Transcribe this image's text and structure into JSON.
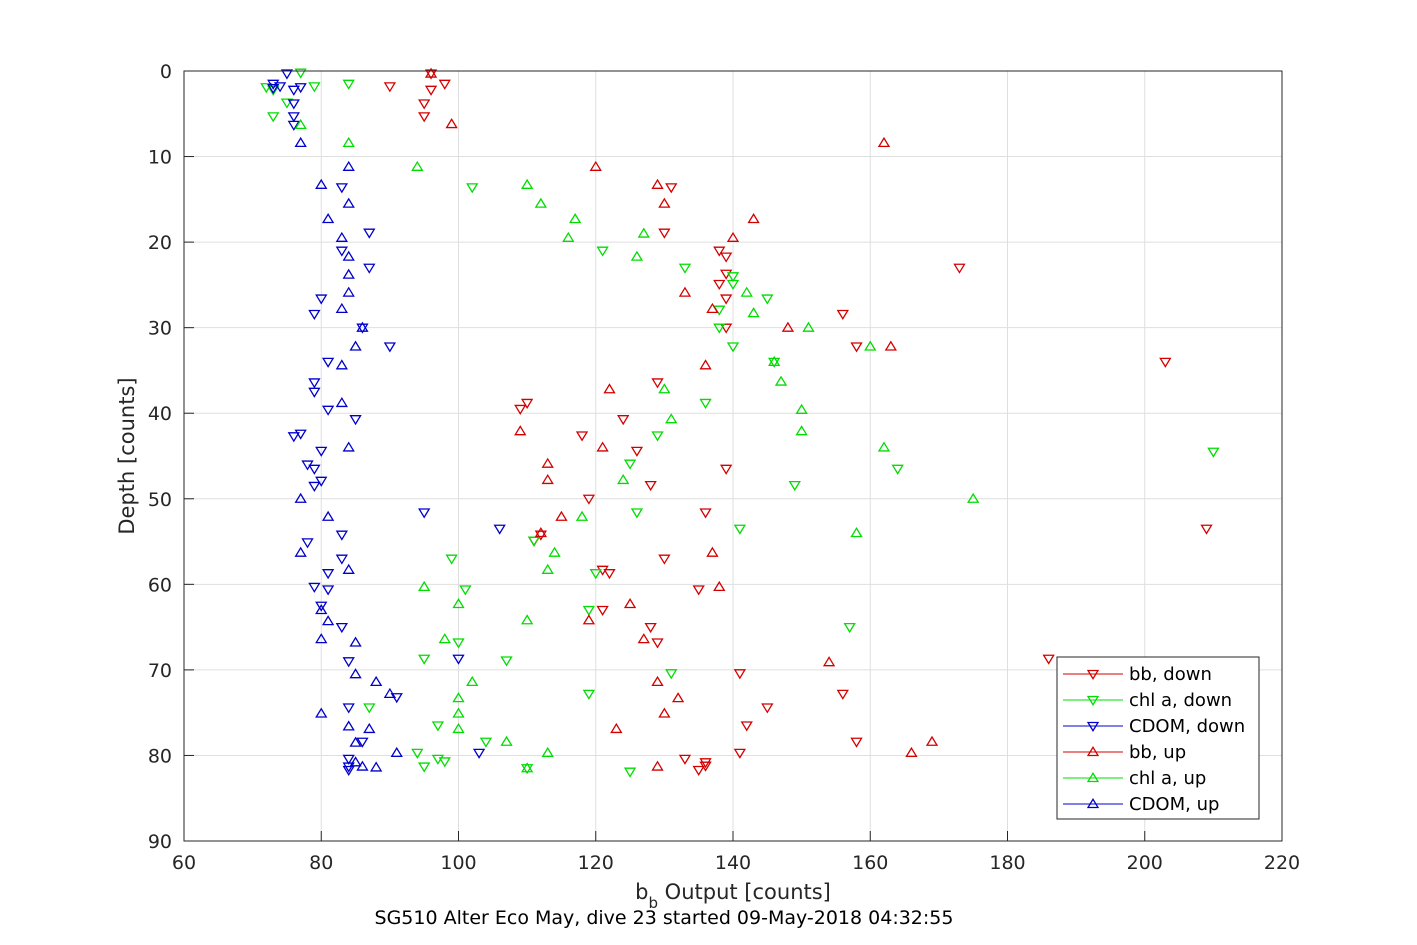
{
  "chart_data": {
    "type": "scatter",
    "title": "",
    "caption": "SG510 Alter Eco May, dive 23 started 09-May-2018 04:32:55",
    "xlabel_main": "b",
    "xlabel_sub": "b",
    "xlabel_rest": " Output [counts]",
    "ylabel": "Depth [counts]",
    "xlim": [
      60,
      220
    ],
    "ylim": [
      0,
      90
    ],
    "y_reversed": true,
    "grid": true,
    "xticks": [
      60,
      80,
      100,
      120,
      140,
      160,
      180,
      200,
      220
    ],
    "yticks": [
      0,
      10,
      20,
      30,
      40,
      50,
      60,
      70,
      80,
      90
    ],
    "legend_position": "bottom-right",
    "series": [
      {
        "name": "bb, down",
        "color": "#d40000",
        "marker": "triangle-down",
        "points": [
          [
            96,
            0.3
          ],
          [
            98,
            1.5
          ],
          [
            90,
            1.8
          ],
          [
            96,
            2.2
          ],
          [
            95,
            3.8
          ],
          [
            95,
            5.3
          ],
          [
            131,
            13.6
          ],
          [
            130,
            18.9
          ],
          [
            138,
            21
          ],
          [
            139,
            21.7
          ],
          [
            139,
            23.7
          ],
          [
            173,
            23
          ],
          [
            138,
            24.9
          ],
          [
            139,
            26.6
          ],
          [
            156,
            28.4
          ],
          [
            139,
            30
          ],
          [
            158,
            32.2
          ],
          [
            203,
            34
          ],
          [
            129,
            36.4
          ],
          [
            110,
            38.8
          ],
          [
            109,
            39.5
          ],
          [
            124,
            40.7
          ],
          [
            118,
            42.6
          ],
          [
            126,
            44.4
          ],
          [
            139,
            46.5
          ],
          [
            128,
            48.4
          ],
          [
            119,
            50
          ],
          [
            136,
            51.6
          ],
          [
            209,
            53.5
          ],
          [
            112,
            54.2
          ],
          [
            111,
            54.9
          ],
          [
            130,
            57
          ],
          [
            121,
            58.3
          ],
          [
            122,
            58.7
          ],
          [
            135,
            60.6
          ],
          [
            121,
            63
          ],
          [
            128,
            65
          ],
          [
            129,
            66.8
          ],
          [
            186,
            68.7
          ],
          [
            141,
            70.4
          ],
          [
            156,
            72.8
          ],
          [
            145,
            74.4
          ],
          [
            142,
            76.5
          ],
          [
            158,
            78.4
          ],
          [
            141,
            79.7
          ],
          [
            133,
            80.4
          ],
          [
            136,
            80.8
          ],
          [
            136,
            81.2
          ],
          [
            135,
            81.7
          ]
        ]
      },
      {
        "name": "chl a, down",
        "color": "#00dd00",
        "marker": "triangle-down",
        "points": [
          [
            77,
            0.2
          ],
          [
            84,
            1.5
          ],
          [
            79,
            1.8
          ],
          [
            72,
            1.9
          ],
          [
            73,
            2.2
          ],
          [
            75,
            3.7
          ],
          [
            73,
            5.3
          ],
          [
            102,
            13.6
          ],
          [
            121,
            21
          ],
          [
            133,
            23
          ],
          [
            140,
            24.9
          ],
          [
            145,
            26.6
          ],
          [
            138,
            27.9
          ],
          [
            138,
            30
          ],
          [
            140,
            32.2
          ],
          [
            146,
            34
          ],
          [
            136,
            38.8
          ],
          [
            149,
            48.4
          ],
          [
            111,
            54.9
          ],
          [
            129,
            42.6
          ],
          [
            125,
            45.9
          ],
          [
            126,
            51.6
          ],
          [
            141,
            53.5
          ],
          [
            99,
            57
          ],
          [
            101,
            60.6
          ],
          [
            120,
            58.7
          ],
          [
            119,
            63
          ],
          [
            100,
            66.8
          ],
          [
            95,
            68.7
          ],
          [
            107,
            68.9
          ],
          [
            87,
            74.4
          ],
          [
            97,
            76.5
          ],
          [
            104,
            78.4
          ],
          [
            94,
            79.7
          ],
          [
            97,
            80.4
          ],
          [
            98,
            80.7
          ],
          [
            95,
            81.3
          ],
          [
            110,
            81.5
          ],
          [
            125,
            81.9
          ],
          [
            119,
            72.8
          ],
          [
            140,
            24
          ],
          [
            210,
            44.5
          ],
          [
            164,
            46.5
          ],
          [
            157,
            65
          ],
          [
            131,
            70.4
          ]
        ]
      },
      {
        "name": "CDOM, down",
        "color": "#0000cc",
        "marker": "triangle-down",
        "points": [
          [
            75,
            0.3
          ],
          [
            73,
            1.5
          ],
          [
            77,
            1.9
          ],
          [
            74,
            1.8
          ],
          [
            73,
            2
          ],
          [
            76,
            2.2
          ],
          [
            76,
            3.8
          ],
          [
            76,
            5.3
          ],
          [
            76,
            6.3
          ],
          [
            83,
            13.6
          ],
          [
            87,
            18.9
          ],
          [
            83,
            21
          ],
          [
            87,
            23
          ],
          [
            80,
            26.6
          ],
          [
            79,
            28.4
          ],
          [
            86,
            30
          ],
          [
            90,
            32.2
          ],
          [
            81,
            34
          ],
          [
            79,
            36.4
          ],
          [
            79,
            37.5
          ],
          [
            81,
            39.6
          ],
          [
            85,
            40.7
          ],
          [
            77,
            42.4
          ],
          [
            76,
            42.7
          ],
          [
            80,
            44.4
          ],
          [
            78,
            46
          ],
          [
            79,
            46.5
          ],
          [
            80,
            47.9
          ],
          [
            79,
            48.5
          ],
          [
            95,
            51.6
          ],
          [
            106,
            53.5
          ],
          [
            83,
            54.2
          ],
          [
            78,
            55.1
          ],
          [
            83,
            57
          ],
          [
            81,
            58.7
          ],
          [
            79,
            60.3
          ],
          [
            81,
            60.6
          ],
          [
            80,
            62.5
          ],
          [
            83,
            65
          ],
          [
            84,
            69
          ],
          [
            100,
            68.7
          ],
          [
            91,
            73.2
          ],
          [
            84,
            74.4
          ],
          [
            86,
            78.4
          ],
          [
            103,
            79.7
          ],
          [
            84,
            80.4
          ],
          [
            84,
            81.7
          ],
          [
            84,
            81.3
          ]
        ]
      },
      {
        "name": "bb, up",
        "color": "#d40000",
        "marker": "triangle-up",
        "points": [
          [
            96,
            0.3
          ],
          [
            99,
            6.2
          ],
          [
            162,
            8.4
          ],
          [
            120,
            11.2
          ],
          [
            129,
            13.3
          ],
          [
            130,
            15.5
          ],
          [
            143,
            17.3
          ],
          [
            140,
            19.5
          ],
          [
            133,
            25.9
          ],
          [
            137,
            27.8
          ],
          [
            148,
            30
          ],
          [
            163,
            32.2
          ],
          [
            136,
            34.4
          ],
          [
            122,
            37.2
          ],
          [
            109,
            42.1
          ],
          [
            121,
            44
          ],
          [
            113,
            45.9
          ],
          [
            113,
            47.8
          ],
          [
            115,
            52.1
          ],
          [
            112,
            54
          ],
          [
            137,
            56.3
          ],
          [
            138,
            60.3
          ],
          [
            125,
            62.3
          ],
          [
            119,
            64.2
          ],
          [
            127,
            66.4
          ],
          [
            154,
            69.1
          ],
          [
            129,
            71.4
          ],
          [
            132,
            73.3
          ],
          [
            130,
            75.1
          ],
          [
            123,
            76.9
          ],
          [
            169,
            78.4
          ],
          [
            166,
            79.7
          ],
          [
            129,
            81.3
          ]
        ]
      },
      {
        "name": "chl a, up",
        "color": "#00dd00",
        "marker": "triangle-up",
        "points": [
          [
            77,
            6.3
          ],
          [
            84,
            8.4
          ],
          [
            94,
            11.2
          ],
          [
            110,
            13.3
          ],
          [
            112,
            15.5
          ],
          [
            117,
            17.3
          ],
          [
            116,
            19.5
          ],
          [
            127,
            19
          ],
          [
            126,
            21.7
          ],
          [
            142,
            25.9
          ],
          [
            143,
            28.3
          ],
          [
            151,
            30
          ],
          [
            160,
            32.2
          ],
          [
            146,
            34
          ],
          [
            147,
            36.3
          ],
          [
            130,
            37.2
          ],
          [
            150,
            39.6
          ],
          [
            131,
            40.7
          ],
          [
            150,
            42.1
          ],
          [
            162,
            44
          ],
          [
            124,
            47.8
          ],
          [
            175,
            50
          ],
          [
            118,
            52.1
          ],
          [
            158,
            54
          ],
          [
            114,
            56.3
          ],
          [
            113,
            58.3
          ],
          [
            95,
            60.3
          ],
          [
            100,
            62.3
          ],
          [
            110,
            64.2
          ],
          [
            98,
            66.4
          ],
          [
            102,
            71.4
          ],
          [
            100,
            73.3
          ],
          [
            100,
            75.1
          ],
          [
            100,
            76.9
          ],
          [
            107,
            78.4
          ],
          [
            113,
            79.7
          ],
          [
            110,
            81.5
          ]
        ]
      },
      {
        "name": "CDOM, up",
        "color": "#0000cc",
        "marker": "triangle-up",
        "points": [
          [
            77,
            8.4
          ],
          [
            84,
            11.2
          ],
          [
            80,
            13.3
          ],
          [
            84,
            15.5
          ],
          [
            81,
            17.3
          ],
          [
            83,
            19.5
          ],
          [
            84,
            21.7
          ],
          [
            84,
            23.8
          ],
          [
            84,
            25.9
          ],
          [
            83,
            27.8
          ],
          [
            86,
            30
          ],
          [
            85,
            32.2
          ],
          [
            83,
            34.4
          ],
          [
            83,
            38.8
          ],
          [
            84,
            44
          ],
          [
            77,
            50
          ],
          [
            81,
            52.1
          ],
          [
            77,
            56.3
          ],
          [
            84,
            58.3
          ],
          [
            80,
            63
          ],
          [
            81,
            64.3
          ],
          [
            80,
            66.4
          ],
          [
            85,
            66.8
          ],
          [
            85,
            70.5
          ],
          [
            88,
            71.4
          ],
          [
            90,
            72.8
          ],
          [
            80,
            75.1
          ],
          [
            84,
            76.6
          ],
          [
            87,
            76.9
          ],
          [
            85,
            78.5
          ],
          [
            91,
            79.7
          ],
          [
            85,
            80.8
          ],
          [
            86,
            81.3
          ],
          [
            88,
            81.4
          ]
        ]
      }
    ]
  }
}
